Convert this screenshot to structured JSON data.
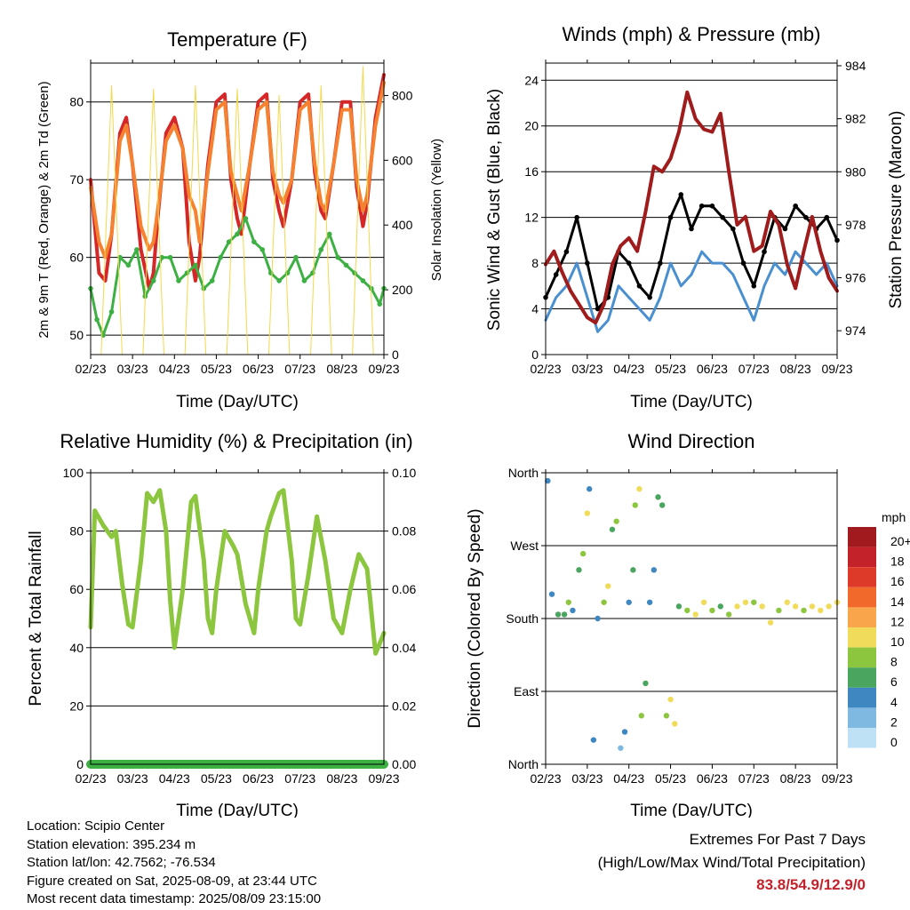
{
  "panels": {
    "temperature": {
      "title": "Temperature (F)",
      "ylabel_left": "2m & 9m T (Red, Orange) & 2m Td (Green)",
      "ylabel_right": "Solar Insolation (Yellow)",
      "xlabel": "Time (Day/UTC)"
    },
    "wind": {
      "title": "Winds (mph) & Pressure (mb)",
      "ylabel_left": "Sonic Wind & Gust (Blue, Black)",
      "ylabel_right": "Station Pressure (Maroon)",
      "xlabel": "Time (Day/UTC)"
    },
    "humidity": {
      "title": "Relative Humidity (%) & Precipitation (in)",
      "ylabel_left": "Percent & Total Rainfall",
      "xlabel": "Time (Day/UTC)"
    },
    "direction": {
      "title": "Wind Direction",
      "ylabel_left": "Direction (Colored By Speed)",
      "xlabel": "Time (Day/UTC)"
    }
  },
  "speed_legend": {
    "title": "mph",
    "labels": [
      "20+",
      "18",
      "16",
      "14",
      "12",
      "10",
      "8",
      "6",
      "4",
      "2",
      "0"
    ],
    "colors": [
      "#a11a1e",
      "#c4222b",
      "#de3a2a",
      "#f16a2c",
      "#f9a54b",
      "#f0dc5a",
      "#8cc63f",
      "#4aa55e",
      "#3f87c1",
      "#7fb8e0",
      "#bfe1f5"
    ]
  },
  "info": {
    "location": "Location: Scipio Center",
    "elevation": "Station elevation: 395.234 m",
    "latlon": "Station lat/lon: 42.7562; -76.534",
    "created": "Figure created on Sat, 2025-08-09, at 23:44 UTC",
    "recent": "Most recent data timestamp: 2025/08/09 23:15:00"
  },
  "extremes": {
    "title": "Extremes For Past 7 Days",
    "subtitle": "(High/Low/Max Wind/Total Precipitation)",
    "values": "83.8/54.9/12.9/0"
  },
  "colors": {
    "temp2m": "#d62728",
    "temp9m": "#f58230",
    "dewpoint": "#3cb043",
    "solar": "#f4d84a",
    "wind": "#4a90d0",
    "gust": "#000000",
    "pressure": "#a01c1c",
    "rh": "#8cc63f",
    "precip": "#3cb043"
  },
  "chart_data": [
    {
      "type": "line",
      "title": "Temperature (F)",
      "xlabel": "Time (Day/UTC)",
      "ylabel": "2m & 9m T (Red, Orange) & 2m Td (Green)",
      "y2label": "Solar Insolation (Yellow)",
      "ylim": [
        47.5,
        85
      ],
      "y2lim": [
        0,
        900
      ],
      "x_ticks": [
        "02/23",
        "03/23",
        "04/23",
        "05/23",
        "06/23",
        "07/23",
        "08/23",
        "09/23"
      ],
      "y_ticks": [
        50,
        60,
        70,
        80
      ],
      "y2_ticks": [
        0,
        200,
        400,
        600,
        800
      ],
      "grid": true,
      "series": [
        {
          "name": "2m T",
          "color": "#d62728",
          "x": [
            0,
            0.2,
            0.35,
            0.5,
            0.7,
            0.85,
            1.0,
            1.2,
            1.4,
            1.5,
            1.6,
            1.8,
            2.0,
            2.2,
            2.35,
            2.5,
            2.6,
            2.8,
            3.0,
            3.2,
            3.35,
            3.5,
            3.6,
            3.8,
            4.0,
            4.2,
            4.35,
            4.5,
            4.6,
            4.8,
            5.0,
            5.2,
            5.35,
            5.5,
            5.6,
            5.8,
            6.0,
            6.2,
            6.35,
            6.5,
            6.6,
            6.8,
            7.0
          ],
          "y": [
            70,
            58,
            57,
            63,
            76,
            78,
            72,
            61,
            56,
            58,
            65,
            76,
            78,
            74,
            62,
            57,
            60,
            72,
            80,
            81,
            70,
            65,
            63,
            72,
            80,
            81,
            70,
            66,
            64,
            70,
            80,
            81,
            71,
            66,
            65,
            72,
            80,
            80,
            69,
            64,
            67,
            78,
            83.5
          ]
        },
        {
          "name": "9m T",
          "color": "#f58230",
          "x": [
            0,
            0.2,
            0.35,
            0.5,
            0.7,
            0.85,
            1.0,
            1.2,
            1.4,
            1.5,
            1.6,
            1.8,
            2.0,
            2.2,
            2.35,
            2.5,
            2.6,
            2.8,
            3.0,
            3.2,
            3.35,
            3.5,
            3.6,
            3.8,
            4.0,
            4.2,
            4.35,
            4.5,
            4.6,
            4.8,
            5.0,
            5.2,
            5.35,
            5.5,
            5.6,
            5.8,
            6.0,
            6.2,
            6.35,
            6.5,
            6.6,
            6.8,
            7.0
          ],
          "y": [
            69,
            62,
            60,
            63,
            75,
            77,
            72,
            64,
            61,
            62,
            66,
            75,
            77,
            74,
            68,
            66,
            62,
            71,
            79,
            80,
            71,
            68,
            66,
            72,
            79,
            80,
            71,
            68,
            67,
            70,
            79,
            80,
            72,
            67,
            66,
            72,
            79,
            79,
            70,
            66,
            68,
            77,
            82.5
          ]
        },
        {
          "name": "2m Td",
          "color": "#3cb043",
          "x": [
            0,
            0.15,
            0.3,
            0.5,
            0.7,
            0.9,
            1.1,
            1.3,
            1.5,
            1.7,
            1.9,
            2.1,
            2.3,
            2.5,
            2.7,
            2.9,
            3.1,
            3.3,
            3.5,
            3.7,
            3.9,
            4.1,
            4.3,
            4.5,
            4.7,
            4.9,
            5.1,
            5.3,
            5.5,
            5.7,
            5.9,
            6.1,
            6.3,
            6.5,
            6.7,
            6.9,
            7.0
          ],
          "y": [
            56,
            52,
            50,
            53,
            60,
            59,
            61,
            55,
            57,
            60,
            60,
            57,
            58,
            59,
            56,
            57,
            60,
            62,
            63,
            65,
            62,
            61,
            58,
            57,
            58,
            60,
            57,
            58,
            61,
            63,
            60,
            59,
            58,
            57,
            56,
            54,
            56
          ]
        },
        {
          "name": "Solar Insolation",
          "axis": "y2",
          "color": "#f4d84a",
          "x": [
            0,
            0.25,
            0.5,
            0.75,
            1.0,
            1.25,
            1.5,
            1.75,
            2.0,
            2.25,
            2.5,
            2.75,
            3.0,
            3.25,
            3.5,
            3.75,
            4.0,
            4.25,
            4.5,
            4.75,
            5.0,
            5.25,
            5.5,
            5.75,
            6.0,
            6.25,
            6.5,
            6.75,
            7.0
          ],
          "y": [
            0,
            0,
            830,
            0,
            0,
            0,
            820,
            0,
            0,
            0,
            830,
            0,
            0,
            0,
            820,
            0,
            0,
            0,
            800,
            0,
            0,
            0,
            830,
            0,
            0,
            0,
            890,
            0,
            0
          ]
        }
      ]
    },
    {
      "type": "line",
      "title": "Winds (mph) & Pressure (mb)",
      "xlabel": "Time (Day/UTC)",
      "ylabel": "Sonic Wind & Gust (Blue, Black)",
      "y2label": "Station Pressure (Maroon)",
      "ylim": [
        0,
        25.5
      ],
      "y2lim": [
        973.1,
        984.1
      ],
      "x_ticks": [
        "02/23",
        "03/23",
        "04/23",
        "05/23",
        "06/23",
        "07/23",
        "08/23",
        "09/23"
      ],
      "y_ticks": [
        0,
        4,
        8,
        12,
        16,
        20,
        24
      ],
      "y2_ticks": [
        974,
        976,
        978,
        980,
        982,
        984
      ],
      "grid": true,
      "series": [
        {
          "name": "Sonic Wind",
          "color": "#4a90d0",
          "x": [
            0,
            0.25,
            0.5,
            0.75,
            1.0,
            1.25,
            1.5,
            1.75,
            2.0,
            2.25,
            2.5,
            2.75,
            3.0,
            3.25,
            3.5,
            3.75,
            4.0,
            4.25,
            4.5,
            4.75,
            5.0,
            5.25,
            5.5,
            5.75,
            6.0,
            6.25,
            6.5,
            6.75,
            7.0
          ],
          "y": [
            3,
            5,
            6,
            8,
            5,
            2,
            3,
            6,
            5,
            4,
            3,
            5,
            8,
            6,
            7,
            9,
            8,
            8,
            7,
            5,
            3,
            6,
            8,
            7,
            9,
            8,
            7,
            8,
            6
          ]
        },
        {
          "name": "Gust",
          "color": "#000000",
          "x": [
            0,
            0.25,
            0.5,
            0.75,
            1.0,
            1.25,
            1.5,
            1.75,
            2.0,
            2.25,
            2.5,
            2.75,
            3.0,
            3.25,
            3.5,
            3.75,
            4.0,
            4.25,
            4.5,
            4.75,
            5.0,
            5.25,
            5.5,
            5.75,
            6.0,
            6.25,
            6.5,
            6.75,
            7.0
          ],
          "y": [
            5,
            7,
            9,
            12,
            8,
            4,
            5,
            9,
            8,
            6,
            5,
            8,
            12,
            14,
            11,
            13,
            13,
            12,
            11,
            8,
            6,
            9,
            12,
            11,
            13,
            12,
            11,
            12,
            10
          ]
        },
        {
          "name": "Station Pressure",
          "axis": "y2",
          "color": "#a01c1c",
          "x": [
            0,
            0.2,
            0.4,
            0.6,
            0.8,
            1.0,
            1.2,
            1.4,
            1.6,
            1.8,
            2.0,
            2.2,
            2.4,
            2.6,
            2.8,
            3.0,
            3.2,
            3.4,
            3.6,
            3.8,
            4.0,
            4.2,
            4.4,
            4.6,
            4.8,
            5.0,
            5.2,
            5.4,
            5.6,
            5.8,
            6.0,
            6.2,
            6.4,
            6.6,
            6.8,
            7.0
          ],
          "y": [
            976.5,
            977,
            976.2,
            975.5,
            975,
            974.5,
            974.3,
            975,
            976.5,
            977.2,
            977.5,
            977,
            978.5,
            980.2,
            980,
            980.5,
            981.5,
            983,
            982,
            981.6,
            981.5,
            982.2,
            980,
            978,
            978.3,
            977,
            977.2,
            978.5,
            978,
            976.5,
            975.6,
            977,
            978.3,
            977,
            976,
            975.5
          ]
        }
      ]
    },
    {
      "type": "line",
      "title": "Relative Humidity (%) & Precipitation (in)",
      "xlabel": "Time (Day/UTC)",
      "ylabel": "Percent & Total Rainfall",
      "ylim": [
        0,
        100
      ],
      "y2lim": [
        0,
        0.1
      ],
      "x_ticks": [
        "02/23",
        "03/23",
        "04/23",
        "05/23",
        "06/23",
        "07/23",
        "08/23",
        "09/23"
      ],
      "y_ticks": [
        0,
        20,
        40,
        60,
        80,
        100
      ],
      "y2_ticks": [
        "0.00",
        "0.02",
        "0.04",
        "0.06",
        "0.08",
        "0.10"
      ],
      "grid": true,
      "series": [
        {
          "name": "Relative Humidity",
          "color": "#8cc63f",
          "x": [
            0,
            0.1,
            0.3,
            0.5,
            0.6,
            0.75,
            0.9,
            1.0,
            1.2,
            1.35,
            1.5,
            1.65,
            1.8,
            1.9,
            2.0,
            2.2,
            2.4,
            2.5,
            2.7,
            2.8,
            2.9,
            3.0,
            3.2,
            3.4,
            3.5,
            3.7,
            3.9,
            4.0,
            4.2,
            4.3,
            4.5,
            4.6,
            4.8,
            4.9,
            5.0,
            5.2,
            5.4,
            5.6,
            5.8,
            6.0,
            6.2,
            6.4,
            6.6,
            6.8,
            7.0
          ],
          "y": [
            47,
            87,
            82,
            78,
            80,
            62,
            48,
            47,
            70,
            93,
            90,
            94,
            80,
            56,
            40,
            60,
            90,
            92,
            70,
            50,
            45,
            60,
            80,
            75,
            72,
            55,
            45,
            60,
            80,
            85,
            93,
            94,
            70,
            50,
            48,
            65,
            85,
            70,
            50,
            45,
            60,
            72,
            67,
            38,
            45
          ]
        },
        {
          "name": "Total Precipitation",
          "axis": "y2",
          "color": "#3cb043",
          "x": [
            0,
            7.0
          ],
          "y": [
            0,
            0
          ]
        }
      ]
    },
    {
      "type": "scatter",
      "title": "Wind Direction",
      "xlabel": "Time (Day/UTC)",
      "ylabel": "Direction (Colored By Speed)",
      "ylim": [
        0,
        360
      ],
      "x_ticks": [
        "02/23",
        "03/23",
        "04/23",
        "05/23",
        "06/23",
        "07/23",
        "08/23",
        "09/23"
      ],
      "y_ticks": [
        "North",
        "East",
        "South",
        "West",
        "North"
      ],
      "grid": true,
      "legend": {
        "title": "mph",
        "position": "right"
      },
      "series": [
        {
          "name": "Wind Direction",
          "x": [
            0.05,
            0.15,
            0.3,
            0.45,
            0.55,
            0.65,
            0.8,
            0.9,
            1.0,
            1.05,
            1.15,
            1.25,
            1.4,
            1.5,
            1.6,
            1.7,
            1.8,
            1.9,
            2.0,
            2.1,
            2.15,
            2.25,
            2.3,
            2.4,
            2.5,
            2.6,
            2.7,
            2.8,
            2.9,
            3.0,
            3.1,
            3.2,
            3.4,
            3.6,
            3.8,
            4.0,
            4.2,
            4.4,
            4.6,
            4.8,
            5.0,
            5.2,
            5.4,
            5.6,
            5.8,
            6.0,
            6.2,
            6.4,
            6.6,
            6.8,
            7.0
          ],
          "y": [
            350,
            210,
            185,
            185,
            200,
            190,
            240,
            260,
            310,
            340,
            30,
            180,
            200,
            220,
            290,
            300,
            20,
            40,
            200,
            240,
            320,
            340,
            60,
            100,
            200,
            240,
            330,
            320,
            60,
            80,
            50,
            195,
            190,
            185,
            200,
            190,
            195,
            185,
            195,
            200,
            200,
            195,
            175,
            190,
            200,
            195,
            190,
            195,
            190,
            195,
            200
          ],
          "speeds": [
            3,
            4,
            5,
            6,
            7,
            3,
            5,
            8,
            9,
            3,
            4,
            4,
            8,
            9,
            5,
            8,
            2,
            3,
            4,
            5,
            7,
            9,
            7,
            5,
            4,
            3,
            5,
            6,
            8,
            10,
            9,
            6,
            8,
            9,
            10,
            8,
            6,
            7,
            10,
            9,
            8,
            10,
            9,
            8,
            10,
            9,
            8,
            10,
            10,
            9,
            9
          ]
        }
      ]
    }
  ]
}
